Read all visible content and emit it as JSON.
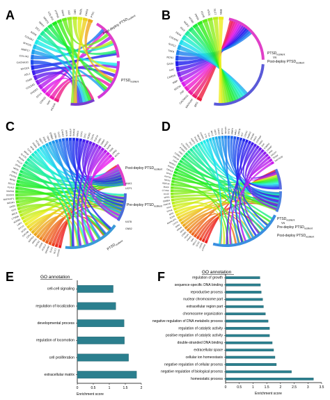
{
  "panels": {
    "A": {
      "letter": "A",
      "genes": [
        "PICKIA",
        "NAV",
        "CDH23",
        "DTX4",
        "FHOD3",
        "COL6A3",
        "C5AR",
        "ASL1",
        "MYO16",
        "CACNA1G",
        "COL1A2",
        "MMP17",
        "MYO15",
        "COL6A1",
        "ADH5",
        "ZIC1",
        "NPPT",
        "WINT3",
        "COL3A1",
        "PTPN3",
        "PAX4",
        "FAT",
        "SRC",
        "RABL",
        "GPR4",
        "PTK1"
      ],
      "groups": [
        "Post-deploy PTSD",
        "PTSD"
      ],
      "group_sub": [
        "resilient",
        "resilient"
      ]
    },
    "B": {
      "letter": "B",
      "genes": [
        "BRG",
        "MAPKIAP",
        "CACNA1G",
        "ZNF",
        "SGCM",
        "MBP",
        "CARDS",
        "KAT",
        "GAS4",
        "RCN1",
        "TNFA",
        "SUZ12",
        "COL6A2",
        "FBX4",
        "IRX3",
        "NOP2",
        "KCNG",
        "PMS5",
        "FOX9",
        "HTO1",
        "SLC7",
        "NMB"
      ],
      "groups": [
        "PTSD",
        "Post-deploy PTSD"
      ],
      "group_sub": [
        "resilient",
        "resilient"
      ],
      "vs": "Vs"
    },
    "C": {
      "letter": "C",
      "genes": [
        "HOXA5",
        "SLC1",
        "ELK3",
        "NRCAM",
        "FOXL4",
        "CDH5",
        "GATA2",
        "PRKG",
        "MAPK4",
        "COL4",
        "CACNB",
        "SOX5",
        "MYCN",
        "LRP1",
        "ADRB3",
        "CTNNB",
        "ABCA",
        "IGF2",
        "LMO4",
        "NEGR1",
        "MAPK1IP1",
        "DOCK3",
        "MAPK8",
        "KLHL3",
        "BCL11",
        "RPS6",
        "PTPN3",
        "PRKC",
        "NR3C",
        "ZFHX",
        "PCLO",
        "RUNX",
        "SLC25",
        "BRAF",
        "TCF4",
        "NFIB",
        "SMAD",
        "KCNQ",
        "WNT7",
        "PDE4",
        "TRIO",
        "ERBB4",
        "GRIN",
        "DLG2",
        "CAMK2",
        "NRXN",
        "PTPRD",
        "SHANK",
        "ANK3",
        "UCP1",
        "DCC",
        "ROBO",
        "CNTN",
        "FGF14",
        "DAB1",
        "GRM7",
        "MAGI2",
        "KATB",
        "GNB",
        "LRRC",
        "ASTN"
      ],
      "groups": [
        "Post-deploy PTSD",
        "Pre-deploy PTSD",
        "PTSD"
      ],
      "group_sub": [
        "resilient",
        "resilient",
        "resilient"
      ],
      "right_labels": [
        "ANK3",
        "UCP1",
        "KATB",
        "GNB2"
      ]
    },
    "D": {
      "letter": "D",
      "genes": [
        "PTPRD",
        "CDH5",
        "SCN1",
        "NELL2",
        "NAV",
        "FRMD",
        "RGS6",
        "CSMD",
        "NFIA",
        "PRKG",
        "GRIK",
        "CNTN",
        "MAPK1IP1",
        "SOX5",
        "BAI3",
        "EPHA",
        "KIAA",
        "PRKCE",
        "ERBB4",
        "DPP6",
        "DLG2",
        "CTNNA",
        "MACF",
        "RBFOX",
        "NRXN",
        "AUTS2",
        "GPC5",
        "CDH13",
        "PARK2",
        "WWOX",
        "FHIT",
        "LRP1B",
        "CSMD1",
        "DMD",
        "PTPRT",
        "CTNND2",
        "SGCZ",
        "DCC",
        "A2BP1",
        "PCDH",
        "NKAIN",
        "CADM2",
        "FTO",
        "TOX",
        "MKL2",
        "ABCC",
        "GRID2",
        "NCAM",
        "OPCML",
        "SNTG",
        "IMMP2",
        "MAGI",
        "LRRTM",
        "EXT",
        "CDH12",
        "ROBO2",
        "SHANK",
        "ANK3",
        "CNTNAP",
        "DAB1",
        "ZNF",
        "ESRRG",
        "LSAMP",
        "NTM",
        "GALNT",
        "TENM",
        "MACROD"
      ],
      "groups": [
        "PTSD",
        "Pre-deploy PTSD",
        "Post-deploy PTSD"
      ],
      "group_sub": [
        "resilient",
        "resilient",
        "resilient"
      ],
      "vs": "Vs"
    },
    "E": {
      "letter": "E",
      "heading": "GO annotation"
    },
    "F": {
      "letter": "F",
      "heading": "GO annotation"
    }
  },
  "colors": {
    "bar": "#2b7f8e",
    "bar_edge": "#1d5b66",
    "axis": "#000000"
  },
  "chart_data": [
    {
      "panel": "E",
      "type": "bar",
      "orientation": "horizontal",
      "title": "GO annotation",
      "xlabel": "Enrichment score",
      "ylabel": "",
      "categories": [
        "cell-cell signaling",
        "regulation of localization",
        "developmental process",
        "regulation of locomotion",
        "cell proliferation",
        "extracellular matrix"
      ],
      "values": [
        1.12,
        1.2,
        1.46,
        1.47,
        1.6,
        1.85
      ],
      "xlim": [
        0,
        2
      ],
      "xticks": [
        "0",
        "0.5",
        "1",
        "1.5",
        "2"
      ],
      "grid": false
    },
    {
      "panel": "F",
      "type": "bar",
      "orientation": "horizontal",
      "title": "GO annotation",
      "xlabel": "Enrichment score",
      "ylabel": "",
      "categories": [
        "regulation of growth",
        "sequence-specific DNA binding",
        "reproductive process",
        "nuclear chromosome part",
        "extracellular region part",
        "chromosome organization",
        "negative regulation of DNA metabolic process",
        "regulation of catalytic activity",
        "positive regulation of catalytic activity",
        "double-stranded DNA binding",
        "extracellular space",
        "cellular ion homeostasis",
        "negative regulation of cellular process",
        "negative regulation of biological process",
        "homeostatic process"
      ],
      "values": [
        1.25,
        1.27,
        1.3,
        1.35,
        1.38,
        1.45,
        1.55,
        1.6,
        1.6,
        1.7,
        1.75,
        1.8,
        1.85,
        2.4,
        3.2
      ],
      "xlim": [
        0,
        3.5
      ],
      "xticks": [
        "0",
        "0.5",
        "1",
        "1.5",
        "2",
        "2.5",
        "3",
        "3.5"
      ],
      "grid": false
    }
  ]
}
